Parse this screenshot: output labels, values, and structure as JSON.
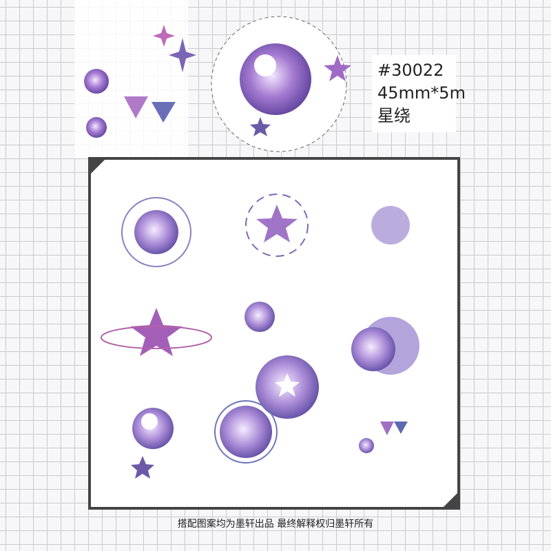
{
  "product": {
    "code": "#30022",
    "size": "45mm*5m",
    "name": "星绕"
  },
  "footer": {
    "note": "搭配图案均为墨轩出品  最终解释权归墨轩所有"
  }
}
